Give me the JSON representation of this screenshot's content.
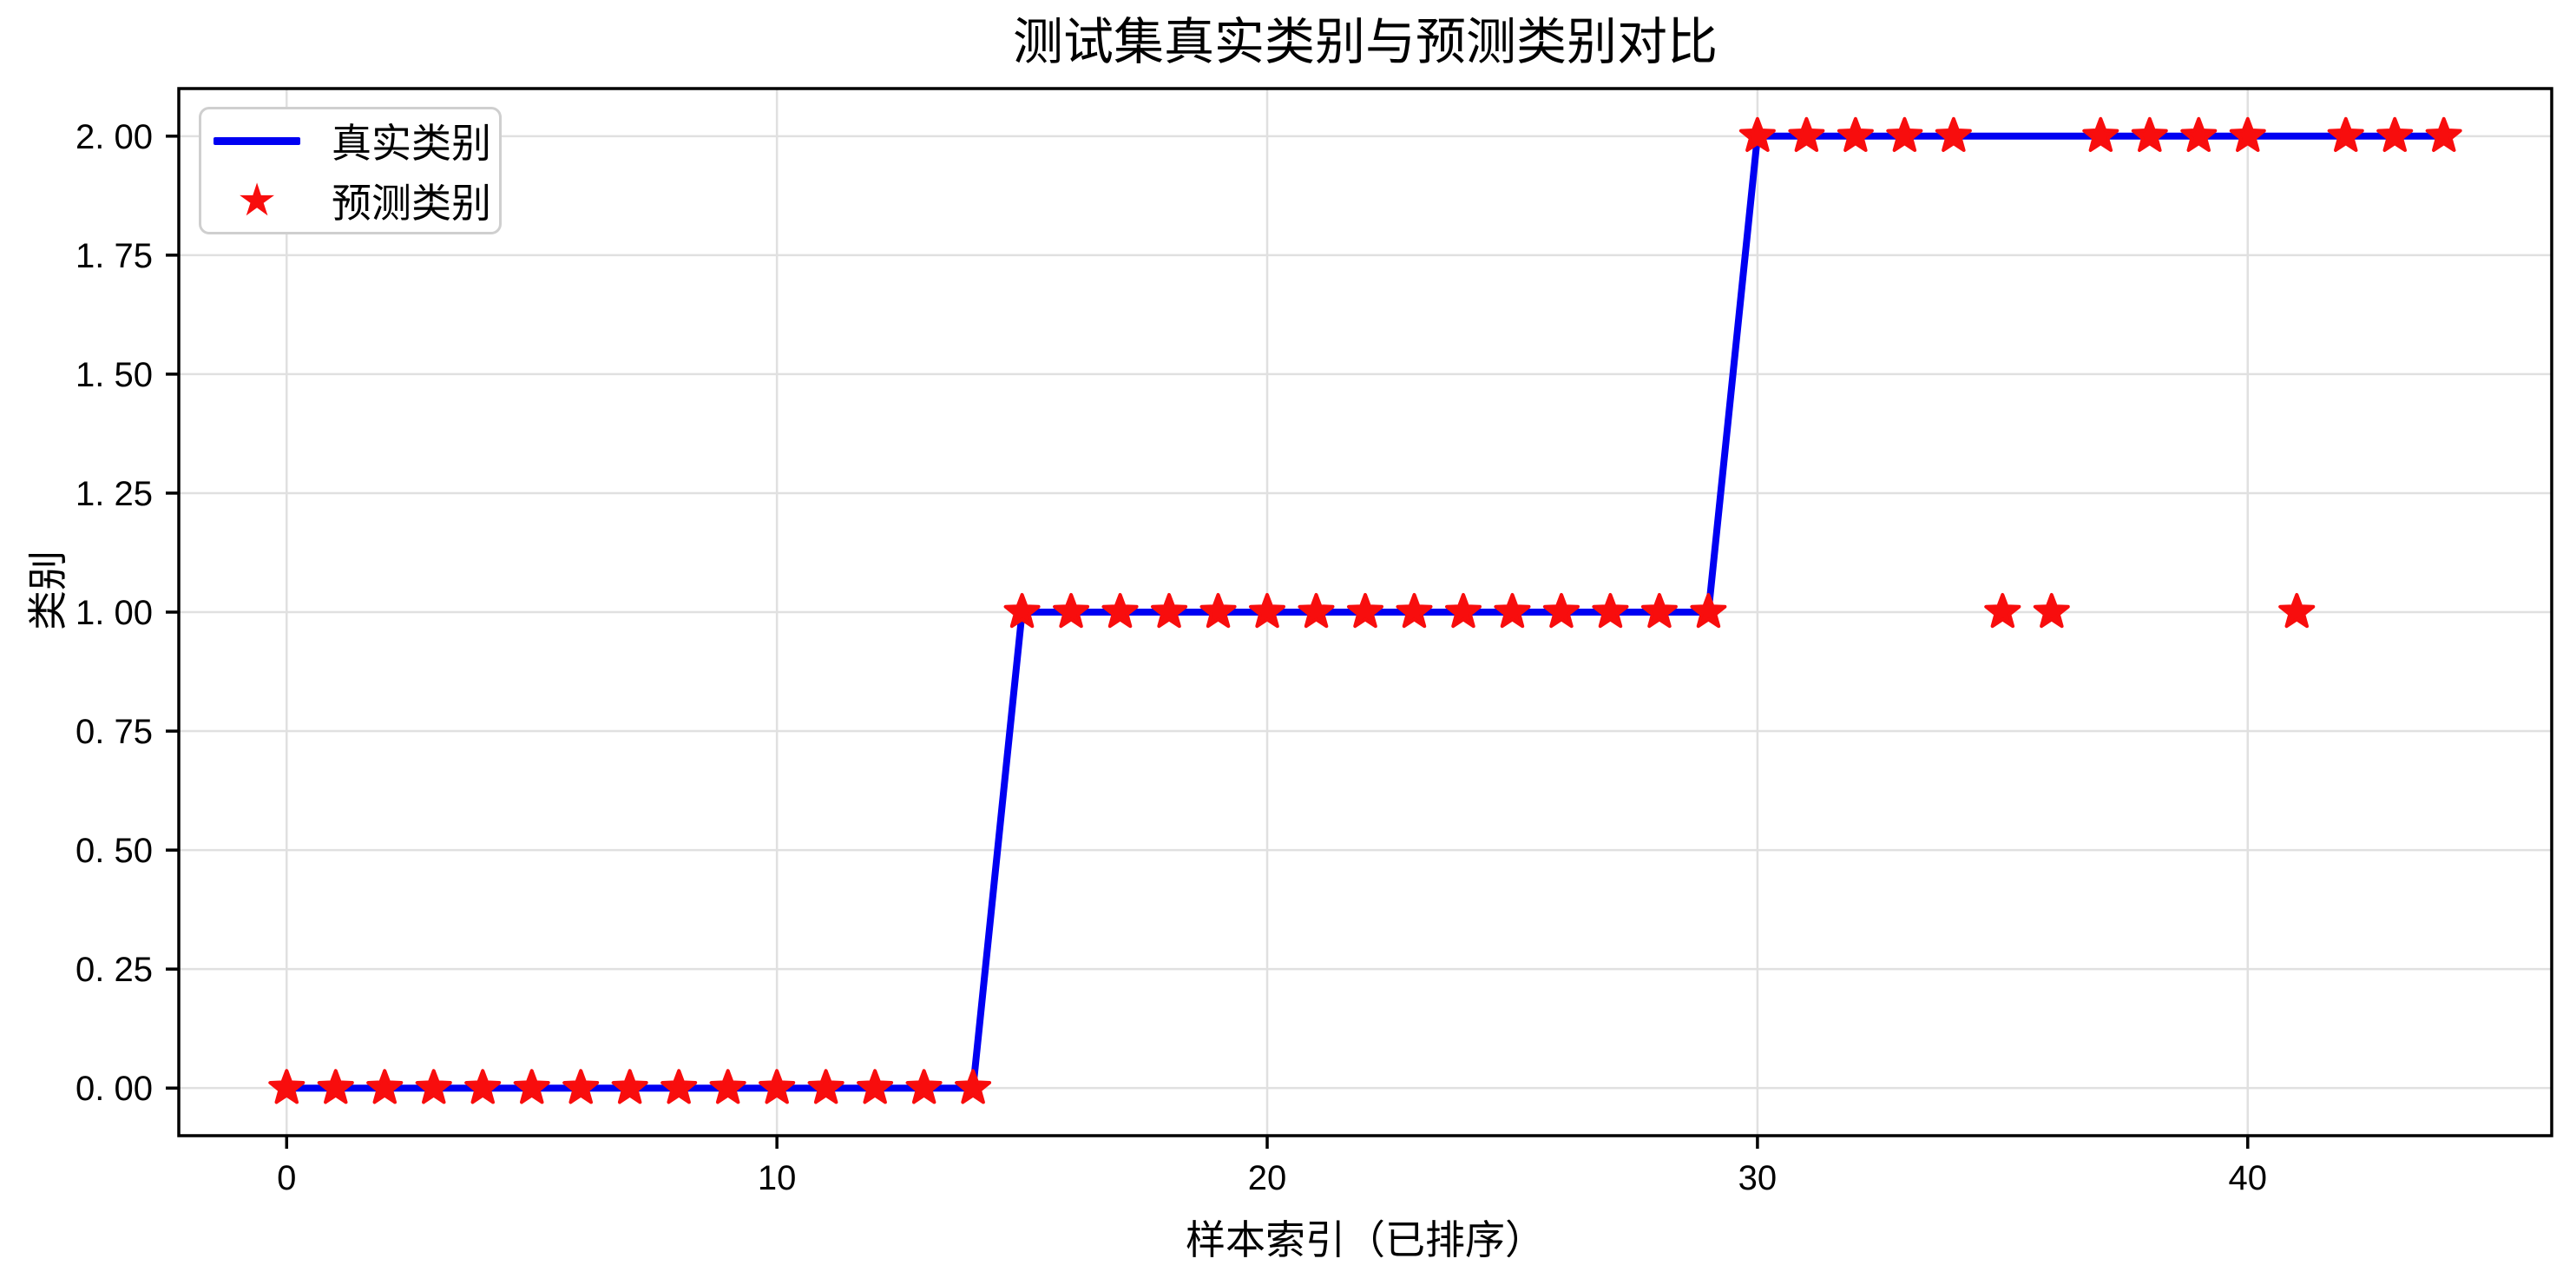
{
  "figure": {
    "title": "测试集真实类别与预测类别对比",
    "xlabel": "样本索引（已排序）",
    "ylabel": "类别"
  },
  "legend": {
    "position": "upper left",
    "items": [
      {
        "label": "真实类别",
        "marker": "line",
        "color": "#0000f2"
      },
      {
        "label": "预测类别",
        "marker": "star",
        "color": "#f80d0d"
      }
    ]
  },
  "colors": {
    "true_line": "#0000f2",
    "pred_star": "#f80d0d",
    "grid": "#e0e0e0",
    "axis": "#000000",
    "legend_border": "#cfcfcf",
    "background": "#ffffff"
  },
  "chart_data": {
    "type": "line",
    "title": "测试集真实类别与预测类别对比",
    "xlabel": "样本索引（已排序）",
    "ylabel": "类别",
    "grid": true,
    "legend_position": "upper left",
    "xlim": [
      -2.2,
      46.2
    ],
    "ylim": [
      -0.1,
      2.1
    ],
    "xticks": {
      "values": [
        0,
        10,
        20,
        30,
        40
      ],
      "labels": [
        "0",
        "10",
        "20",
        "30",
        "40"
      ]
    },
    "yticks": {
      "values": [
        0,
        0.25,
        0.5,
        0.75,
        1,
        1.25,
        1.5,
        1.75,
        2
      ],
      "labels": [
        "0. 00",
        "0. 25",
        "0. 50",
        "0. 75",
        "1. 00",
        "1. 25",
        "1. 50",
        "1. 75",
        "2. 00"
      ]
    },
    "x": [
      0,
      1,
      2,
      3,
      4,
      5,
      6,
      7,
      8,
      9,
      10,
      11,
      12,
      13,
      14,
      15,
      16,
      17,
      18,
      19,
      20,
      21,
      22,
      23,
      24,
      25,
      26,
      27,
      28,
      29,
      30,
      31,
      32,
      33,
      34,
      35,
      36,
      37,
      38,
      39,
      40,
      41,
      42,
      43,
      44
    ],
    "series": [
      {
        "name": "真实类别",
        "style": "line",
        "color": "#0000f2",
        "values": [
          0,
          0,
          0,
          0,
          0,
          0,
          0,
          0,
          0,
          0,
          0,
          0,
          0,
          0,
          0,
          1,
          1,
          1,
          1,
          1,
          1,
          1,
          1,
          1,
          1,
          1,
          1,
          1,
          1,
          1,
          2,
          2,
          2,
          2,
          2,
          2,
          2,
          2,
          2,
          2,
          2,
          2,
          2,
          2,
          2
        ]
      },
      {
        "name": "预测类别",
        "style": "scatter-star",
        "color": "#f80d0d",
        "values": [
          0,
          0,
          0,
          0,
          0,
          0,
          0,
          0,
          0,
          0,
          0,
          0,
          0,
          0,
          0,
          1,
          1,
          1,
          1,
          1,
          1,
          1,
          1,
          1,
          1,
          1,
          1,
          1,
          1,
          1,
          2,
          2,
          2,
          2,
          2,
          1,
          1,
          2,
          2,
          2,
          2,
          1,
          2,
          2,
          2
        ]
      }
    ]
  }
}
